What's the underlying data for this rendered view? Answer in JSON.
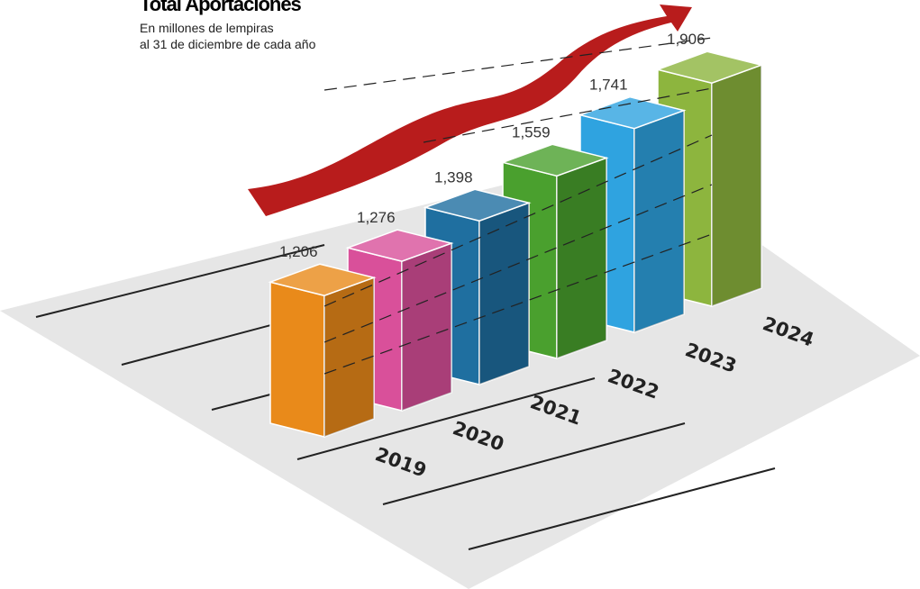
{
  "chart_data": {
    "type": "bar3d",
    "title": "Total Aportaciones",
    "subtitle": [
      "En millones de lempiras",
      "al 31 de diciembre de cada año"
    ],
    "categories": [
      "2019",
      "2020",
      "2021",
      "2022",
      "2023",
      "2024"
    ],
    "values": [
      1206,
      1276,
      1398,
      1559,
      1741,
      1906
    ],
    "value_labels": [
      "1,206",
      "1,276",
      "1,398",
      "1,559",
      "1,741",
      "1,906"
    ],
    "colors": [
      "#e98a1a",
      "#d9509a",
      "#1f6fa0",
      "#4aa02e",
      "#2fa3e0",
      "#8db53e"
    ]
  }
}
